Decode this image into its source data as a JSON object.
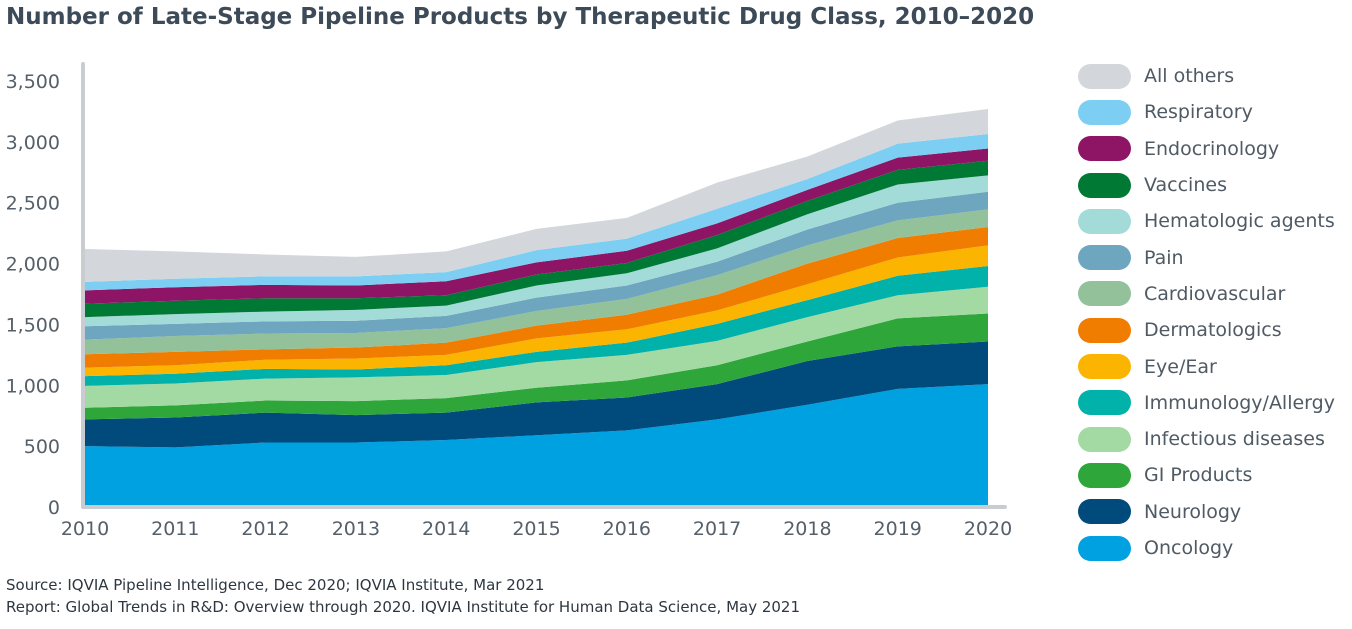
{
  "page": {
    "title": "Number of Late-Stage Pipeline Products by Therapeutic Drug Class, 2010–2020",
    "source_lines": [
      "Source: IQVIA Pipeline Intelligence, Dec 2020; IQVIA Institute, Mar 2021",
      "Report: Global Trends in R&D: Overview through 2020. IQVIA Institute for Human Data Science, May 2021"
    ]
  },
  "chart_data": {
    "type": "area",
    "stacked": true,
    "title": "Number of Late-Stage Pipeline Products by Therapeutic Drug Class, 2010–2020",
    "x": [
      "2010",
      "2011",
      "2012",
      "2013",
      "2014",
      "2015",
      "2016",
      "2017",
      "2018",
      "2019",
      "2020"
    ],
    "ylim": [
      0,
      3500
    ],
    "yticks": [
      "0",
      "500",
      "1,000",
      "1,500",
      "2,000",
      "2,500",
      "3,000",
      "3,500"
    ],
    "ytick_values": [
      0,
      500,
      1000,
      1500,
      2000,
      2500,
      3000,
      3500
    ],
    "grid": false,
    "legend_position": "right",
    "legend_order": [
      "All others",
      "Respiratory",
      "Endocrinology",
      "Vaccines",
      "Hematologic agents",
      "Pain",
      "Cardiovascular",
      "Dermatologics",
      "Eye/Ear",
      "Immunology/Allergy",
      "Infectious diseases",
      "GI Products",
      "Neurology",
      "Oncology"
    ],
    "series": [
      {
        "name": "Oncology",
        "color": "#00a1e0",
        "values": [
          500,
          490,
          530,
          530,
          550,
          590,
          630,
          720,
          840,
          970,
          1010
        ]
      },
      {
        "name": "Neurology",
        "color": "#004a7c",
        "values": [
          220,
          245,
          245,
          225,
          225,
          270,
          270,
          290,
          360,
          350,
          350
        ]
      },
      {
        "name": "GI Products",
        "color": "#2ea63a",
        "values": [
          95,
          100,
          100,
          115,
          120,
          120,
          140,
          155,
          160,
          230,
          230
        ]
      },
      {
        "name": "Infectious diseases",
        "color": "#a3d9a3",
        "values": [
          180,
          180,
          180,
          195,
          190,
          210,
          210,
          200,
          200,
          190,
          220
        ]
      },
      {
        "name": "Immunology/Allergy",
        "color": "#00b2a9",
        "values": [
          80,
          80,
          80,
          65,
          80,
          85,
          100,
          140,
          140,
          160,
          170
        ]
      },
      {
        "name": "Eye/Ear",
        "color": "#fbb400",
        "values": [
          70,
          70,
          75,
          90,
          85,
          110,
          110,
          110,
          130,
          150,
          170
        ]
      },
      {
        "name": "Dermatologics",
        "color": "#f07d00",
        "values": [
          110,
          110,
          85,
          90,
          100,
          105,
          120,
          130,
          170,
          160,
          150
        ]
      },
      {
        "name": "Cardiovascular",
        "color": "#92c19a",
        "values": [
          120,
          130,
          130,
          120,
          120,
          120,
          130,
          160,
          150,
          145,
          145
        ]
      },
      {
        "name": "Pain",
        "color": "#6ea5bf",
        "values": [
          110,
          100,
          100,
          100,
          100,
          110,
          110,
          110,
          130,
          145,
          145
        ]
      },
      {
        "name": "Hematologic agents",
        "color": "#a3dbd8",
        "values": [
          75,
          80,
          80,
          90,
          85,
          100,
          100,
          110,
          125,
          150,
          135
        ]
      },
      {
        "name": "Vaccines",
        "color": "#007934",
        "values": [
          110,
          110,
          110,
          95,
          85,
          90,
          85,
          110,
          110,
          120,
          120
        ]
      },
      {
        "name": "Endocrinology",
        "color": "#8e1565",
        "values": [
          110,
          110,
          110,
          105,
          115,
          100,
          100,
          95,
          90,
          100,
          100
        ]
      },
      {
        "name": "Respiratory",
        "color": "#7ccff3",
        "values": [
          70,
          70,
          70,
          75,
          75,
          100,
          100,
          120,
          90,
          115,
          120
        ]
      },
      {
        "name": "All others",
        "color": "#d3d7db",
        "values": [
          270,
          225,
          180,
          160,
          170,
          175,
          170,
          215,
          185,
          190,
          205
        ]
      }
    ]
  }
}
